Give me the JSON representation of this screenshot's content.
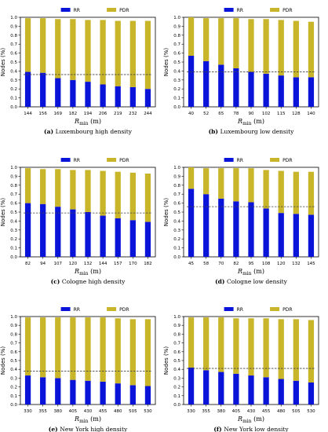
{
  "chart_data": [
    {
      "type": "bar",
      "stacked": true,
      "panel_label": "(a)",
      "caption": "Luxembourg high density",
      "xlabel": "R_min (m)",
      "ylabel": "Nodes (%)",
      "ylim": [
        0,
        1.0
      ],
      "yticks": [
        "0.0",
        "0.1",
        "0.2",
        "0.3",
        "0.4",
        "0.5",
        "0.6",
        "0.7",
        "0.8",
        "0.9",
        "1.0"
      ],
      "legend": [
        "RR",
        "PDR"
      ],
      "legend_position": "top",
      "categories": [
        "144",
        "156",
        "169",
        "182",
        "194",
        "206",
        "219",
        "232",
        "244"
      ],
      "series": [
        {
          "name": "RR",
          "color": "#0a14d8",
          "values": [
            0.39,
            0.38,
            0.32,
            0.3,
            0.28,
            0.25,
            0.23,
            0.22,
            0.2
          ]
        },
        {
          "name": "PDR",
          "color": "#c9b52a",
          "values": [
            0.6,
            0.61,
            0.66,
            0.68,
            0.69,
            0.72,
            0.73,
            0.74,
            0.76
          ]
        }
      ],
      "threshold": 0.36
    },
    {
      "type": "bar",
      "stacked": true,
      "panel_label": "(b)",
      "caption": "Luxembourg low density",
      "xlabel": "R_min (m)",
      "ylabel": "Nodes (%)",
      "ylim": [
        0,
        1.0
      ],
      "yticks": [
        "0.0",
        "0.1",
        "0.2",
        "0.3",
        "0.4",
        "0.5",
        "0.6",
        "0.7",
        "0.8",
        "0.9",
        "1.0"
      ],
      "legend": [
        "RR",
        "PDR"
      ],
      "legend_position": "top",
      "categories": [
        "40",
        "52",
        "65",
        "78",
        "90",
        "102",
        "115",
        "128",
        "140"
      ],
      "series": [
        {
          "name": "RR",
          "color": "#0a14d8",
          "values": [
            0.57,
            0.51,
            0.47,
            0.43,
            0.39,
            0.37,
            0.35,
            0.33,
            0.33
          ]
        },
        {
          "name": "PDR",
          "color": "#c9b52a",
          "values": [
            0.43,
            0.48,
            0.52,
            0.56,
            0.59,
            0.61,
            0.62,
            0.63,
            0.62
          ]
        }
      ],
      "threshold": 0.39
    },
    {
      "type": "bar",
      "stacked": true,
      "panel_label": "(c)",
      "caption": "Cologne high density",
      "xlabel": "R_min (m)",
      "ylabel": "Nodes (%)",
      "ylim": [
        0,
        1.0
      ],
      "yticks": [
        "0.0",
        "0.1",
        "0.2",
        "0.3",
        "0.4",
        "0.5",
        "0.6",
        "0.7",
        "0.8",
        "0.9",
        "1.0"
      ],
      "legend": [
        "RR",
        "PDR"
      ],
      "legend_position": "top",
      "categories": [
        "82",
        "94",
        "107",
        "120",
        "132",
        "144",
        "157",
        "170",
        "182"
      ],
      "series": [
        {
          "name": "RR",
          "color": "#0a14d8",
          "values": [
            0.6,
            0.59,
            0.56,
            0.53,
            0.5,
            0.46,
            0.43,
            0.41,
            0.39
          ]
        },
        {
          "name": "PDR",
          "color": "#c9b52a",
          "values": [
            0.39,
            0.39,
            0.42,
            0.44,
            0.47,
            0.5,
            0.52,
            0.53,
            0.54
          ]
        }
      ],
      "threshold": 0.49
    },
    {
      "type": "bar",
      "stacked": true,
      "panel_label": "(d)",
      "caption": "Cologne low density",
      "xlabel": "R_min (m)",
      "ylabel": "Nodes (%)",
      "ylim": [
        0,
        1.0
      ],
      "yticks": [
        "0.0",
        "0.1",
        "0.2",
        "0.3",
        "0.4",
        "0.5",
        "0.6",
        "0.7",
        "0.8",
        "0.9",
        "1.0"
      ],
      "legend": [
        "RR",
        "PDR"
      ],
      "legend_position": "top",
      "categories": [
        "45",
        "58",
        "70",
        "82",
        "95",
        "108",
        "120",
        "132",
        "145"
      ],
      "series": [
        {
          "name": "RR",
          "color": "#0a14d8",
          "values": [
            0.76,
            0.7,
            0.65,
            0.62,
            0.61,
            0.54,
            0.49,
            0.48,
            0.47
          ]
        },
        {
          "name": "PDR",
          "color": "#c9b52a",
          "values": [
            0.24,
            0.29,
            0.34,
            0.37,
            0.38,
            0.43,
            0.47,
            0.47,
            0.48
          ]
        }
      ],
      "threshold": 0.56
    },
    {
      "type": "bar",
      "stacked": true,
      "panel_label": "(e)",
      "caption": "New York high density",
      "xlabel": "R_min (m)",
      "ylabel": "Nodes (%)",
      "ylim": [
        0,
        1.0
      ],
      "yticks": [
        "0.0",
        "0.1",
        "0.2",
        "0.3",
        "0.4",
        "0.5",
        "0.6",
        "0.7",
        "0.8",
        "0.9",
        "1.0"
      ],
      "legend": [
        "RR",
        "PDR"
      ],
      "legend_position": "top",
      "categories": [
        "330",
        "355",
        "380",
        "405",
        "430",
        "455",
        "480",
        "505",
        "530"
      ],
      "series": [
        {
          "name": "RR",
          "color": "#0a14d8",
          "values": [
            0.33,
            0.31,
            0.3,
            0.28,
            0.27,
            0.26,
            0.24,
            0.22,
            0.21
          ]
        },
        {
          "name": "PDR",
          "color": "#c9b52a",
          "values": [
            0.66,
            0.68,
            0.69,
            0.71,
            0.72,
            0.73,
            0.74,
            0.75,
            0.76
          ]
        }
      ],
      "threshold": 0.38
    },
    {
      "type": "bar",
      "stacked": true,
      "panel_label": "(f)",
      "caption": "New York low density",
      "xlabel": "R_min (m)",
      "ylabel": "Nodes (%)",
      "ylim": [
        0,
        1.0
      ],
      "yticks": [
        "0.0",
        "0.1",
        "0.2",
        "0.3",
        "0.4",
        "0.5",
        "0.6",
        "0.7",
        "0.8",
        "0.9",
        "1.0"
      ],
      "legend": [
        "RR",
        "PDR"
      ],
      "legend_position": "top",
      "categories": [
        "330",
        "355",
        "380",
        "405",
        "430",
        "455",
        "480",
        "505",
        "530"
      ],
      "series": [
        {
          "name": "RR",
          "color": "#0a14d8",
          "values": [
            0.42,
            0.39,
            0.37,
            0.35,
            0.33,
            0.31,
            0.29,
            0.27,
            0.25
          ]
        },
        {
          "name": "PDR",
          "color": "#c9b52a",
          "values": [
            0.57,
            0.6,
            0.62,
            0.63,
            0.65,
            0.67,
            0.68,
            0.7,
            0.71
          ]
        }
      ],
      "threshold": 0.41
    }
  ]
}
